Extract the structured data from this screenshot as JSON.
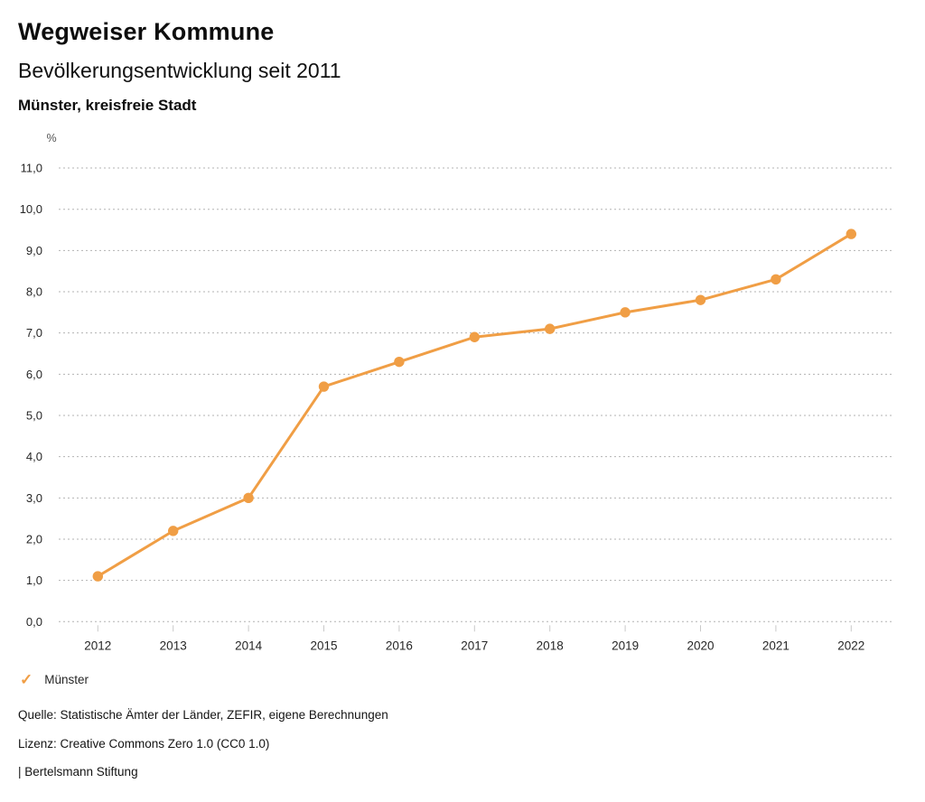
{
  "header": {
    "title": "Wegweiser Kommune",
    "subtitle": "Bevölkerungsentwicklung seit 2011",
    "region": "Münster, kreisfreie Stadt"
  },
  "chart_data": {
    "type": "line",
    "title": "Bevölkerungsentwicklung seit 2011",
    "unit_label": "%",
    "categories": [
      "2012",
      "2013",
      "2014",
      "2015",
      "2016",
      "2017",
      "2018",
      "2019",
      "2020",
      "2021",
      "2022"
    ],
    "series": [
      {
        "name": "Münster",
        "values": [
          1.1,
          2.2,
          3.0,
          5.7,
          6.3,
          6.9,
          7.1,
          7.5,
          7.8,
          8.3,
          9.4
        ],
        "color": "#F09E45"
      }
    ],
    "ylim": [
      0.0,
      11.0
    ],
    "y_tick_step": 1.0,
    "y_tick_labels": [
      "0,0",
      "1,0",
      "2,0",
      "3,0",
      "4,0",
      "5,0",
      "6,0",
      "7,0",
      "8,0",
      "9,0",
      "10,0",
      "11,0"
    ],
    "grid": "horizontal-dotted",
    "legend_position": "bottom-left"
  },
  "legend": {
    "check_icon": "✓",
    "label": "Münster"
  },
  "footer": {
    "source": "Quelle: Statistische Ämter der Länder, ZEFIR, eigene Berechnungen",
    "license": "Lizenz: Creative Commons Zero 1.0 (CC0 1.0)",
    "attribution": "| Bertelsmann Stiftung"
  },
  "colors": {
    "accent": "#F09E45",
    "grid": "#b3b3b3",
    "tick": "#c9c9c9",
    "axis_text": "#262626",
    "unit_text": "#555555"
  }
}
